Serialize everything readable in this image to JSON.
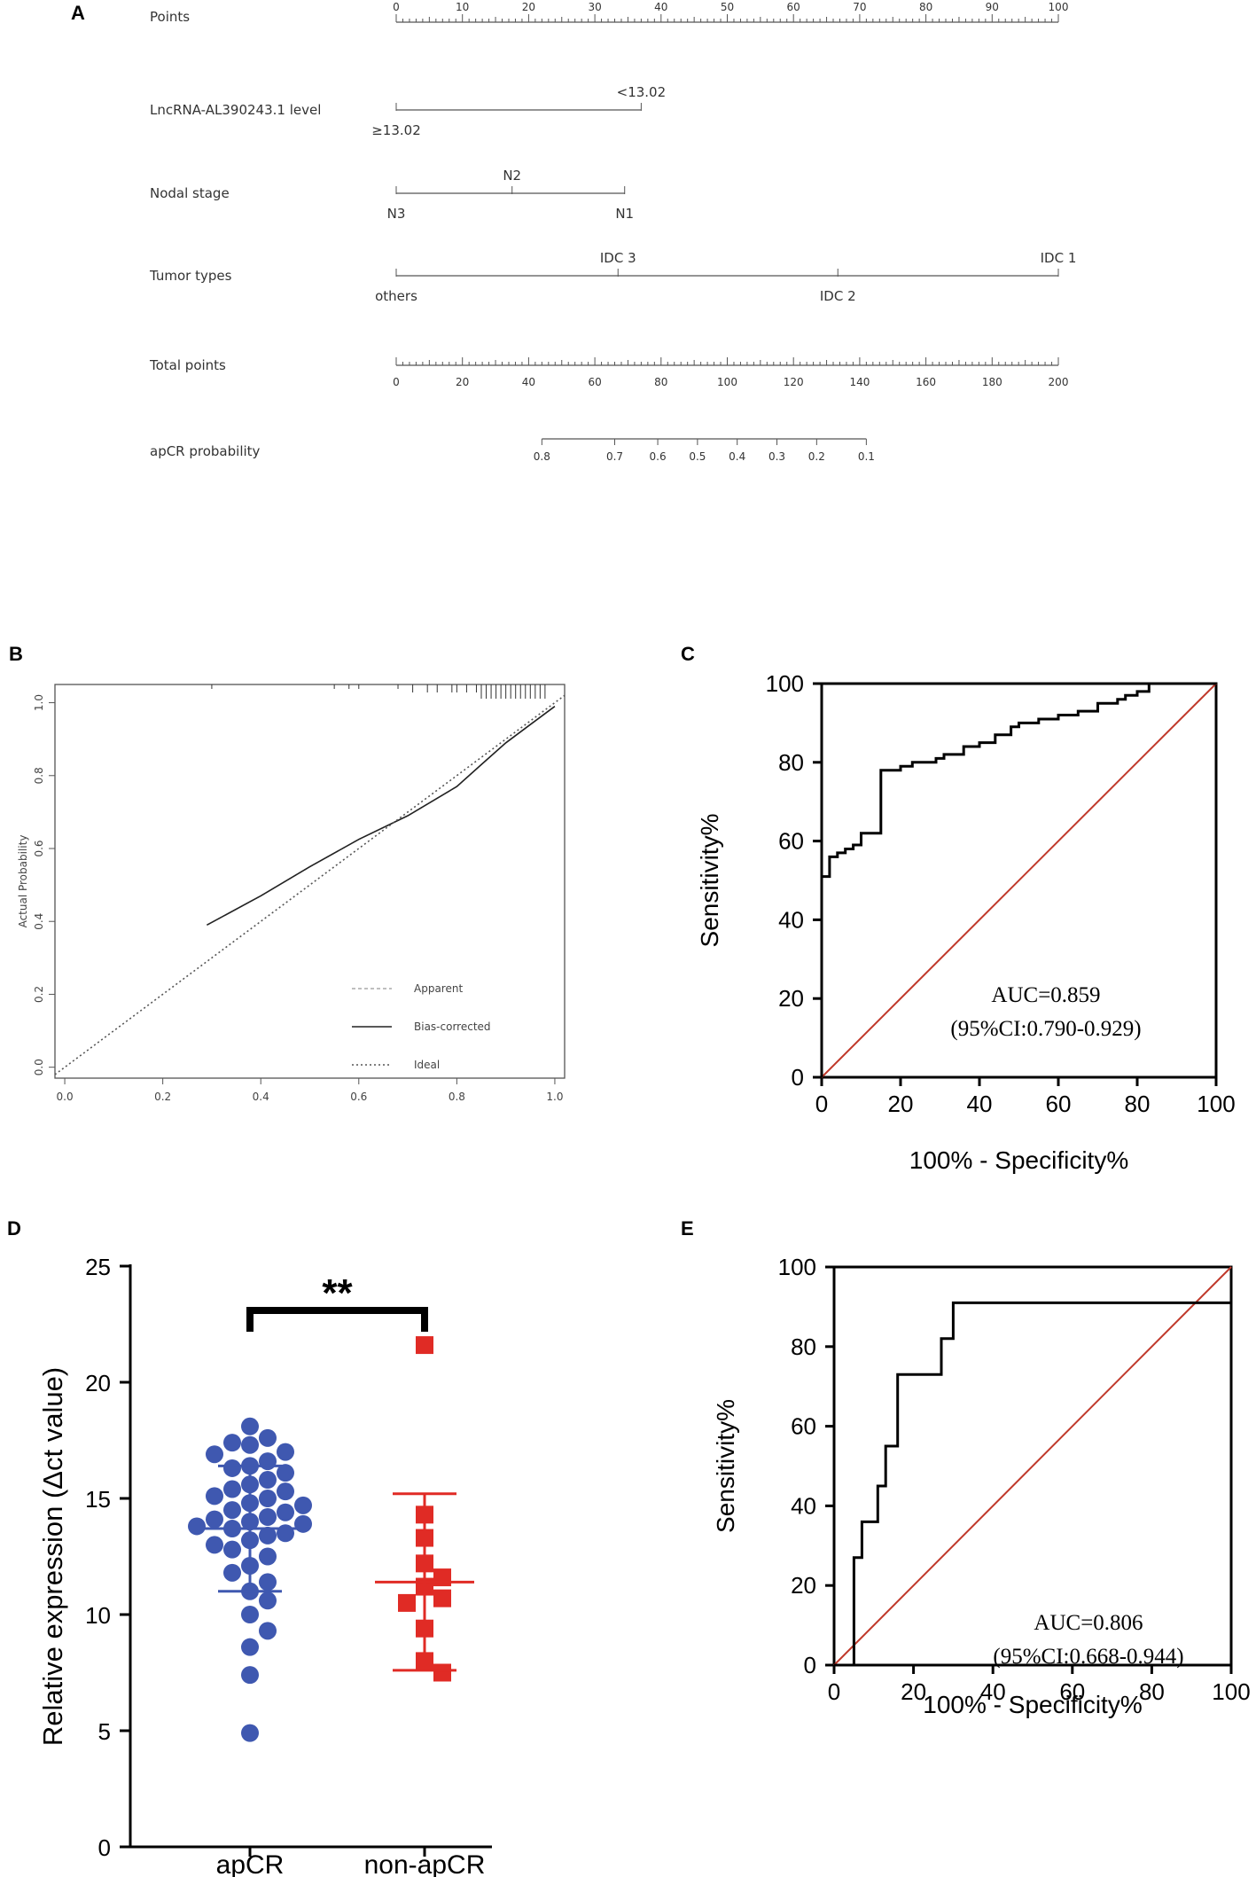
{
  "panel_letters": {
    "a": "A",
    "b": "B",
    "c": "C",
    "d": "D",
    "e": "E"
  },
  "chart_data": [
    {
      "id": "A",
      "type": "nomogram",
      "rows": [
        {
          "label": "Points",
          "scale": {
            "min": 0,
            "max": 100,
            "major": 10,
            "minor": 1,
            "labels": [
              "0",
              "10",
              "20",
              "30",
              "40",
              "50",
              "60",
              "70",
              "80",
              "90",
              "100"
            ]
          }
        },
        {
          "label": "LncRNA-AL390243.1 level",
          "categories": [
            {
              "name": "≥13.02",
              "points": 0,
              "side": "below"
            },
            {
              "name": "<13.02",
              "points": 37,
              "side": "above"
            }
          ]
        },
        {
          "label": "Nodal stage",
          "categories": [
            {
              "name": "N3",
              "points": 0,
              "side": "below"
            },
            {
              "name": "N2",
              "points": 17.5,
              "side": "above"
            },
            {
              "name": "N1",
              "points": 34.5,
              "side": "below"
            }
          ]
        },
        {
          "label": "Tumor types",
          "categories": [
            {
              "name": "others",
              "points": 0,
              "side": "below"
            },
            {
              "name": "IDC 3",
              "points": 33.5,
              "side": "above"
            },
            {
              "name": "IDC 2",
              "points": 66.7,
              "side": "below"
            },
            {
              "name": "IDC 1",
              "points": 100,
              "side": "above"
            }
          ]
        },
        {
          "label": "Total points",
          "scale": {
            "min": 0,
            "max": 200,
            "major": 20,
            "minor": 2,
            "labels": [
              "0",
              "20",
              "40",
              "60",
              "80",
              "100",
              "120",
              "140",
              "160",
              "180",
              "200"
            ]
          }
        },
        {
          "label": "apCR probability",
          "prob_ticks": [
            {
              "label": "0.8",
              "total_points": 44
            },
            {
              "label": "0.7",
              "total_points": 66
            },
            {
              "label": "0.6",
              "total_points": 79
            },
            {
              "label": "0.5",
              "total_points": 91
            },
            {
              "label": "0.4",
              "total_points": 103
            },
            {
              "label": "0.3",
              "total_points": 115
            },
            {
              "label": "0.2",
              "total_points": 127
            },
            {
              "label": "0.1",
              "total_points": 142
            }
          ]
        }
      ]
    },
    {
      "id": "B",
      "type": "line",
      "title": "",
      "xlabel": "",
      "ylabel": "Actual Probability",
      "xlim": [
        -0.02,
        1.02
      ],
      "ylim": [
        -0.03,
        1.05
      ],
      "xticks": [
        "0.0",
        "0.2",
        "0.4",
        "0.6",
        "0.8",
        "1.0"
      ],
      "yticks": [
        "0.0",
        "0.2",
        "0.4",
        "0.6",
        "0.8",
        "1.0"
      ],
      "legend_position": "bottom-right",
      "series": [
        {
          "name": "Apparent",
          "style": "dashed-light",
          "x": [
            0.29,
            0.4,
            0.5,
            0.6,
            0.7,
            0.8,
            0.85,
            0.9,
            0.95,
            1.0
          ],
          "y": [
            0.39,
            0.47,
            0.55,
            0.625,
            0.69,
            0.77,
            0.83,
            0.89,
            0.94,
            0.99
          ]
        },
        {
          "name": "Bias-corrected",
          "style": "solid",
          "x": [
            0.29,
            0.4,
            0.5,
            0.6,
            0.7,
            0.8,
            0.85,
            0.9,
            0.95,
            1.0
          ],
          "y": [
            0.39,
            0.47,
            0.55,
            0.625,
            0.69,
            0.77,
            0.83,
            0.89,
            0.94,
            0.99
          ]
        },
        {
          "name": "Ideal",
          "style": "dotted",
          "x": [
            -0.02,
            1.02
          ],
          "y": [
            -0.02,
            1.02
          ]
        }
      ],
      "rug": [
        0.3,
        0.55,
        0.58,
        0.6,
        0.68,
        0.71,
        0.74,
        0.76,
        0.79,
        0.8,
        0.82,
        0.84,
        0.85,
        0.86,
        0.87,
        0.88,
        0.89,
        0.9,
        0.91,
        0.92,
        0.93,
        0.94,
        0.95,
        0.96,
        0.97,
        0.98
      ]
    },
    {
      "id": "C",
      "type": "line",
      "title": "",
      "xlabel": "100% - Specificity%",
      "ylabel": "Sensitivity%",
      "xlim": [
        0,
        100
      ],
      "ylim": [
        0,
        100
      ],
      "xticks": [
        "0",
        "20",
        "40",
        "60",
        "80",
        "100"
      ],
      "yticks": [
        "0",
        "20",
        "40",
        "60",
        "80",
        "100"
      ],
      "annotation": [
        "AUC=0.859",
        "(95%CI:0.790-0.929)"
      ],
      "series": [
        {
          "name": "ROC",
          "color": "#000000",
          "x": [
            0,
            0,
            2,
            2,
            4,
            4,
            6,
            6,
            8,
            8,
            10,
            10,
            15,
            15,
            20,
            20,
            23,
            23,
            29,
            29,
            31,
            31,
            36,
            36,
            40,
            40,
            44,
            44,
            48,
            48,
            50,
            50,
            55,
            55,
            60,
            60,
            65,
            65,
            70,
            70,
            75,
            75,
            77,
            77,
            80,
            80,
            83,
            83,
            100
          ],
          "y": [
            0,
            51,
            51,
            56,
            56,
            57,
            57,
            58,
            58,
            59,
            59,
            62,
            62,
            78,
            78,
            79,
            79,
            80,
            80,
            81,
            81,
            82,
            82,
            84,
            84,
            85,
            85,
            87,
            87,
            89,
            89,
            90,
            90,
            91,
            91,
            92,
            92,
            93,
            93,
            95,
            95,
            96,
            96,
            97,
            97,
            98,
            98,
            100,
            100
          ]
        },
        {
          "name": "Reference",
          "color": "#c0392b",
          "x": [
            0,
            100
          ],
          "y": [
            0,
            100
          ]
        }
      ]
    },
    {
      "id": "D",
      "type": "scatter",
      "title": "",
      "xlabel": "",
      "ylabel": "Relative expression (Δct value)",
      "ylim": [
        0,
        25
      ],
      "yticks": [
        "0",
        "5",
        "10",
        "15",
        "20",
        "25"
      ],
      "categories": [
        "apCR",
        "non-apCR"
      ],
      "significance": "**",
      "series": [
        {
          "name": "apCR",
          "color": "#3f58b0",
          "marker": "circle",
          "mean": 13.7,
          "sd_upper": 16.4,
          "sd_lower": 11.0,
          "values": [
            18.1,
            17.6,
            17.4,
            17.3,
            17.0,
            16.9,
            16.6,
            16.4,
            16.3,
            16.1,
            15.8,
            15.6,
            15.4,
            15.3,
            15.1,
            15.0,
            14.8,
            14.7,
            14.5,
            14.4,
            14.2,
            14.1,
            14.0,
            13.9,
            13.8,
            13.7,
            13.5,
            13.4,
            13.2,
            13.0,
            12.8,
            12.5,
            12.1,
            11.8,
            11.4,
            11.0,
            10.6,
            10.0,
            9.3,
            8.6,
            7.4,
            4.9
          ]
        },
        {
          "name": "non-apCR",
          "color": "#e02b25",
          "marker": "square",
          "mean": 11.4,
          "sd_upper": 15.2,
          "sd_lower": 7.6,
          "values": [
            21.6,
            14.3,
            13.3,
            12.2,
            11.6,
            11.2,
            10.7,
            10.5,
            9.4,
            8.0,
            7.5
          ]
        }
      ]
    },
    {
      "id": "E",
      "type": "line",
      "title": "",
      "xlabel": "100% - Specificity%",
      "ylabel": "Sensitivity%",
      "xlim": [
        0,
        100
      ],
      "ylim": [
        0,
        100
      ],
      "xticks": [
        "0",
        "20",
        "40",
        "60",
        "80",
        "100"
      ],
      "yticks": [
        "0",
        "20",
        "40",
        "60",
        "80",
        "100"
      ],
      "annotation": [
        "AUC=0.806",
        "(95%CI:0.668-0.944)"
      ],
      "series": [
        {
          "name": "ROC",
          "color": "#000000",
          "x": [
            0,
            5,
            5,
            7,
            7,
            11,
            11,
            13,
            13,
            16,
            16,
            27,
            27,
            30,
            30,
            100
          ],
          "y": [
            0,
            0,
            27,
            27,
            36,
            36,
            45,
            45,
            55,
            55,
            73,
            73,
            82,
            82,
            91,
            91
          ]
        },
        {
          "name": "Reference",
          "color": "#c0392b",
          "x": [
            0,
            100
          ],
          "y": [
            0,
            100
          ]
        }
      ]
    }
  ]
}
